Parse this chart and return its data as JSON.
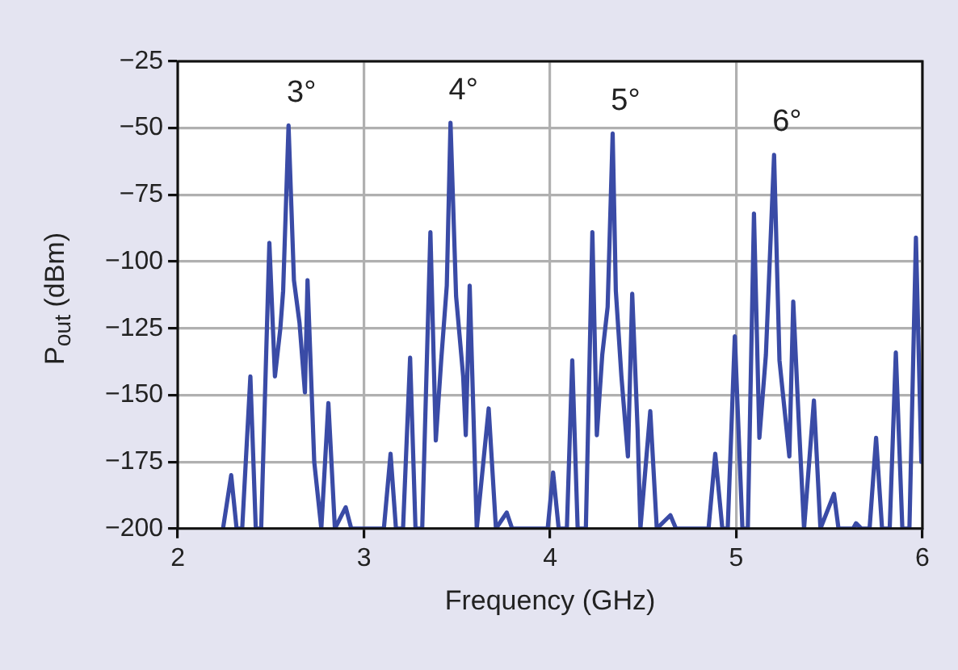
{
  "chart_data": {
    "type": "line",
    "xlabel": "Frequency (GHz)",
    "ylabel": "P$_{out}$ (dBm)",
    "xlim": [
      2,
      6
    ],
    "xticks": [
      2,
      3,
      4,
      5,
      6
    ],
    "ylim": [
      -200,
      -25
    ],
    "yticks": [
      -200,
      -175,
      -150,
      -125,
      -100,
      -75,
      -50,
      -25
    ],
    "grid": true,
    "legend": false,
    "marker": "none",
    "line_style": "solid",
    "annotations": [
      "3°",
      "4°",
      "5°",
      "6°"
    ],
    "series": [
      {
        "color": "#3a4ba6",
        "x": [
          2.243,
          2.287,
          2.316,
          2.346,
          2.39,
          2.419,
          2.448,
          2.492,
          2.522,
          2.551,
          2.566,
          2.595,
          2.624,
          2.654,
          2.683,
          2.697,
          2.733,
          2.771,
          2.809,
          2.844,
          2.902,
          2.932,
          3.107,
          3.143,
          3.172,
          3.21,
          3.248,
          3.277,
          3.313,
          3.357,
          3.386,
          3.415,
          3.445,
          3.465,
          3.495,
          3.533,
          3.547,
          3.568,
          3.606,
          3.67,
          3.709,
          3.767,
          3.796,
          3.987,
          4.016,
          4.046,
          4.09,
          4.119,
          4.148,
          4.192,
          4.227,
          4.251,
          4.28,
          4.309,
          4.336,
          4.353,
          4.383,
          4.418,
          4.441,
          4.47,
          4.485,
          4.538,
          4.573,
          4.646,
          4.676,
          4.851,
          4.887,
          4.925,
          4.954,
          4.992,
          5.033,
          5.062,
          5.095,
          5.124,
          5.159,
          5.203,
          5.232,
          5.285,
          5.306,
          5.335,
          5.364,
          5.417,
          5.452,
          5.525,
          5.549,
          5.628,
          5.643,
          5.672,
          5.716,
          5.751,
          5.783,
          5.824,
          5.857,
          5.892,
          5.93,
          5.965,
          5.994
        ],
        "values": [
          -200,
          -180,
          -200,
          -200,
          -143,
          -200,
          -200,
          -93,
          -143,
          -125,
          -111,
          -49,
          -107,
          -123,
          -149,
          -107,
          -175,
          -200,
          -153,
          -200,
          -192,
          -200,
          -200,
          -172,
          -200,
          -200,
          -136,
          -200,
          -200,
          -89,
          -167,
          -137,
          -109,
          -48,
          -113,
          -143,
          -165,
          -109,
          -200,
          -155,
          -200,
          -194,
          -200,
          -200,
          -179,
          -200,
          -200,
          -137,
          -200,
          -200,
          -89,
          -165,
          -135,
          -117,
          -52,
          -111,
          -143,
          -173,
          -112,
          -163,
          -200,
          -156,
          -200,
          -195,
          -200,
          -200,
          -172,
          -200,
          -200,
          -128,
          -200,
          -200,
          -82,
          -166,
          -135,
          -60,
          -137,
          -173,
          -115,
          -159,
          -200,
          -152,
          -200,
          -187,
          -200,
          -200,
          -198,
          -200,
          -200,
          -166,
          -200,
          -200,
          -134,
          -200,
          -200,
          -91,
          -175
        ]
      }
    ]
  }
}
